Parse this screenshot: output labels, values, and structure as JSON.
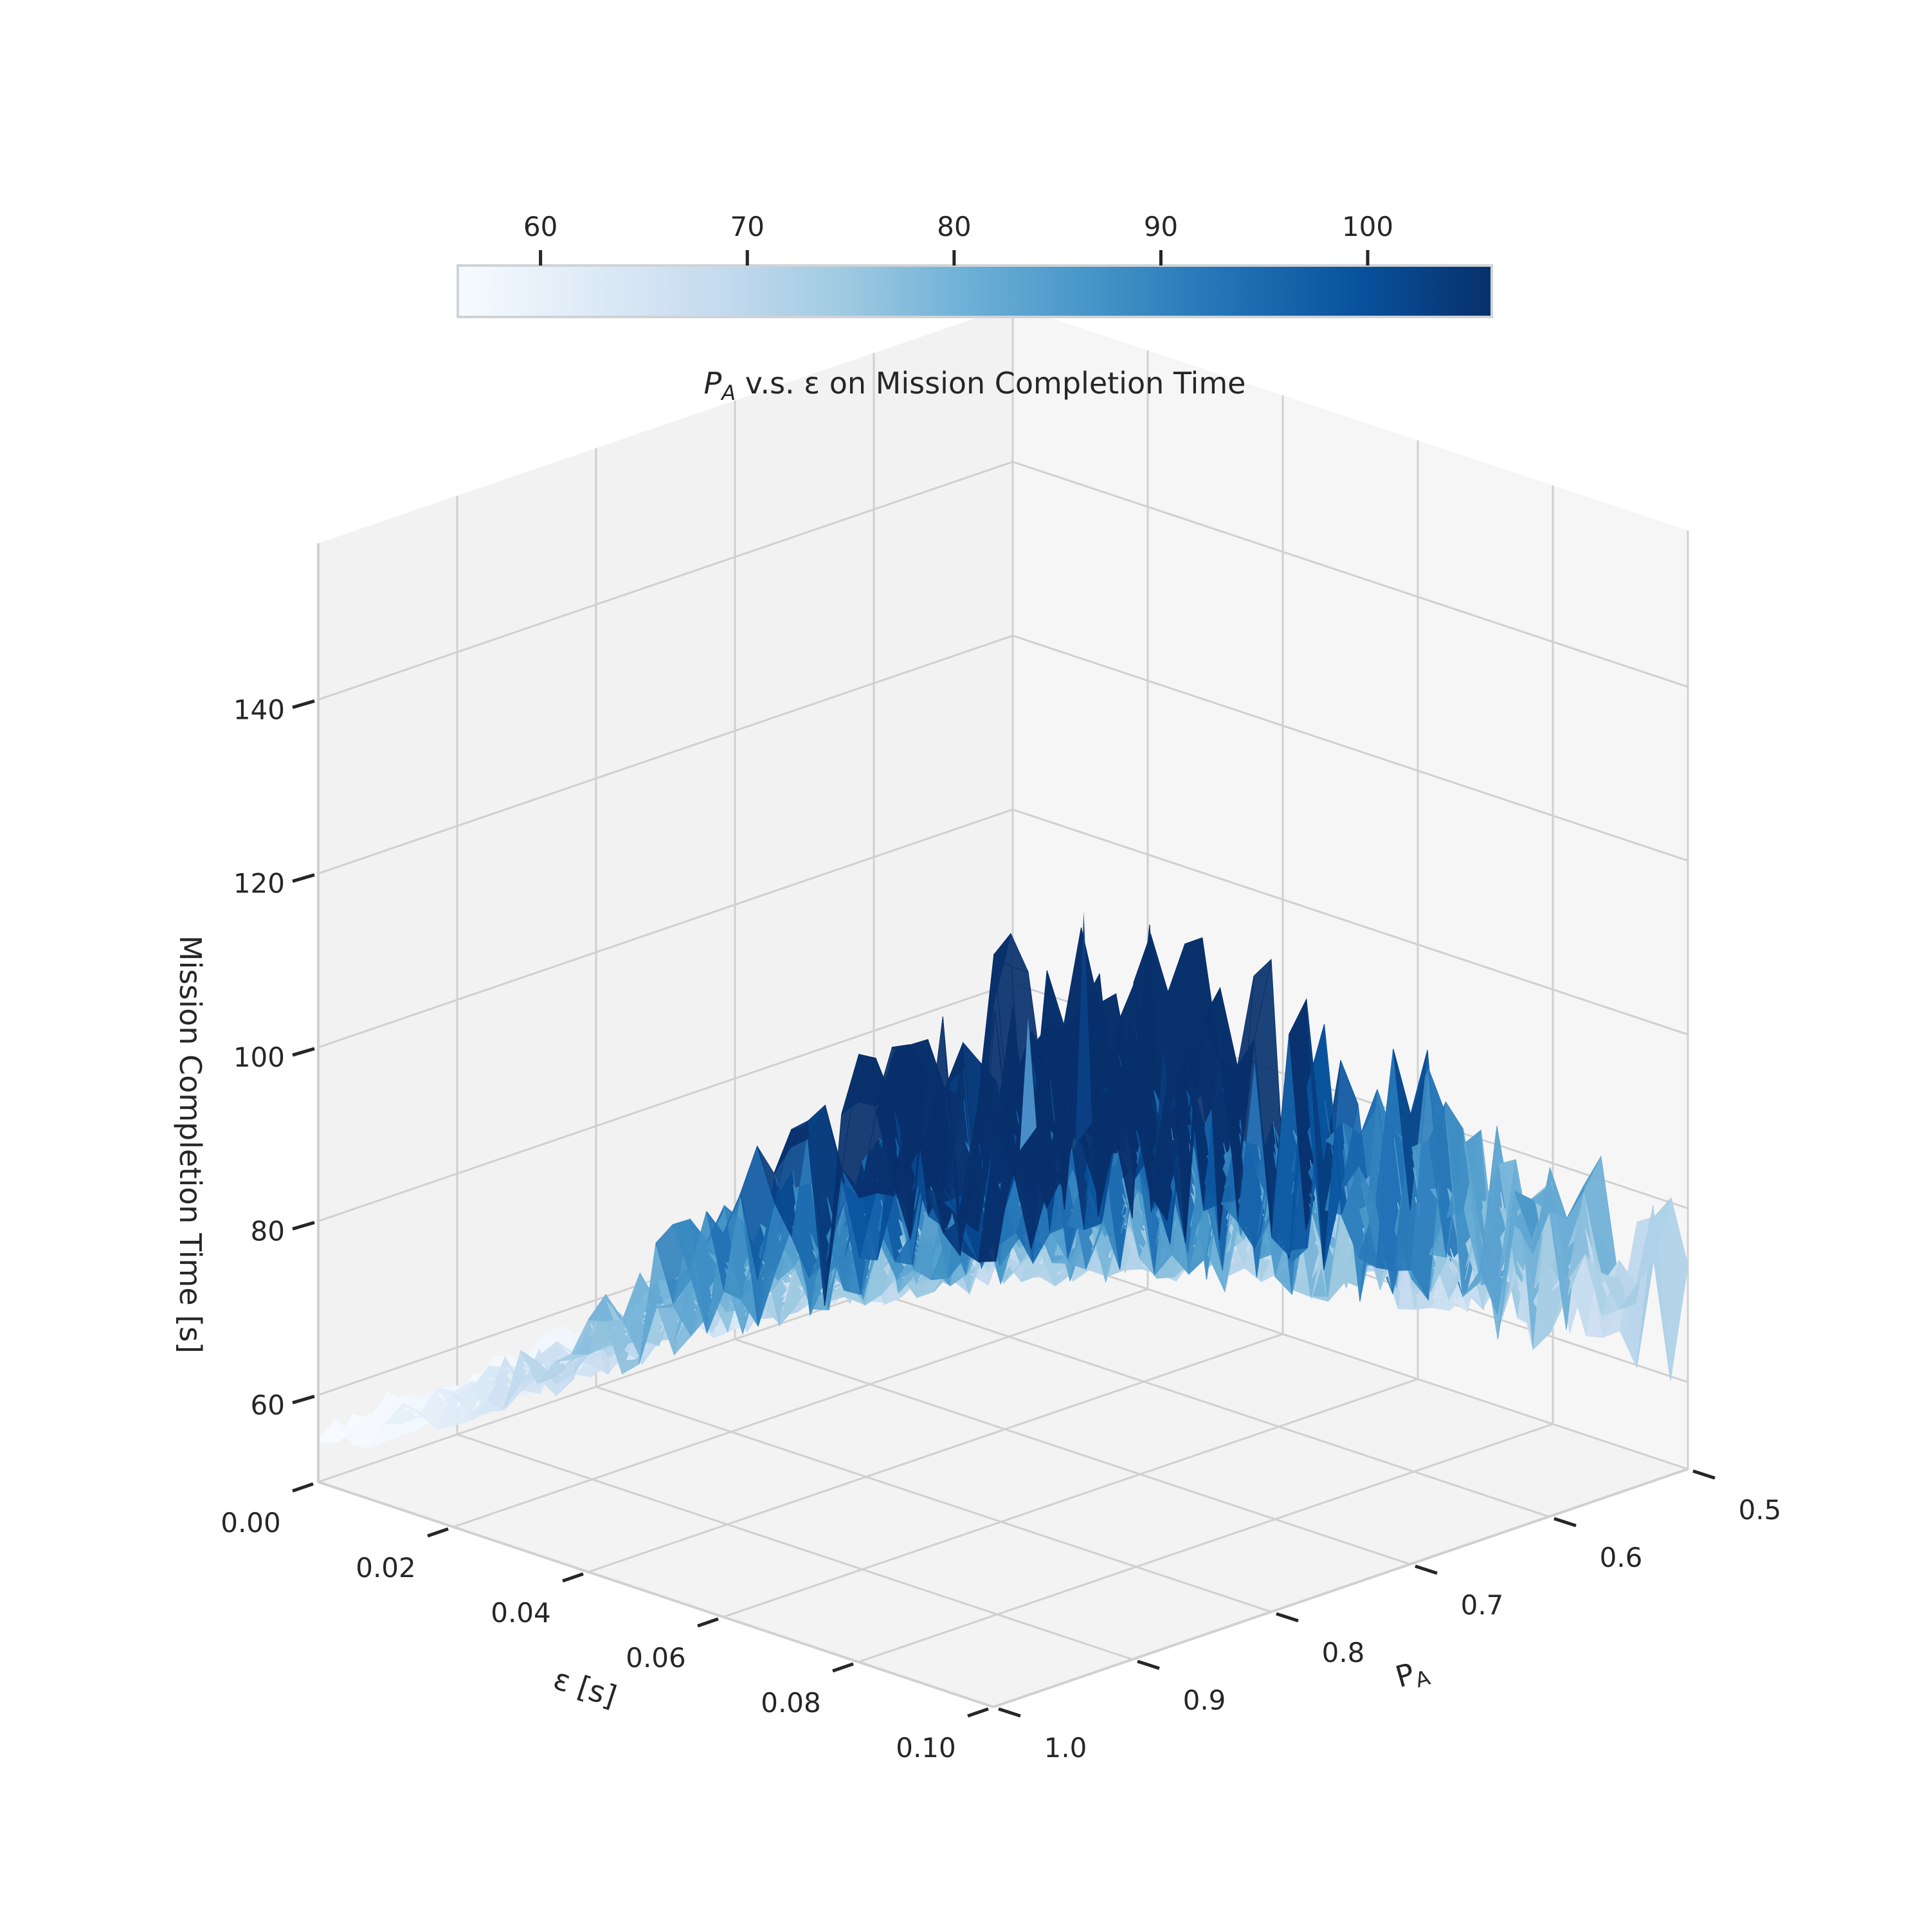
{
  "colors": {
    "background": "#ffffff",
    "pane_left": "#f2f2f2",
    "pane_right": "#f6f6f6",
    "pane_floor": "#f3f3f3",
    "grid": "#d0d0d0",
    "tick_mark": "#262626",
    "text": "#262626",
    "colorbar_border": "#cfd3d8",
    "spike_dark": "#0b3f84",
    "spike_mid": "#4a8ec8",
    "colormap": "Blues",
    "colormap_stops": [
      "#f7fbff",
      "#deebf7",
      "#c6dbef",
      "#9ecae1",
      "#6baed6",
      "#4292c6",
      "#2171b5",
      "#08519c",
      "#08306b"
    ]
  },
  "colorbar": {
    "ticks": [
      "60",
      "70",
      "80",
      "90",
      "100"
    ],
    "range": [
      56,
      106
    ],
    "title_main": "P",
    "title_sub": "A",
    "title_rest": " v.s. ε on Mission Completion Time"
  },
  "chart_data": {
    "type": "surface3d",
    "title": "P_A v.s. ε on Mission Completion Time",
    "x_axis": {
      "label": "ε [s]",
      "range": [
        0.0,
        0.1
      ],
      "ticks": [
        "0.00",
        "0.02",
        "0.04",
        "0.06",
        "0.08",
        "0.10"
      ]
    },
    "y_axis": {
      "label_main": "P",
      "label_sub": "A",
      "range": [
        0.5,
        1.0
      ],
      "ticks": [
        "0.5",
        "0.6",
        "0.7",
        "0.8",
        "0.9",
        "1.0"
      ]
    },
    "z_axis": {
      "label": "Mission Completion Time [s]",
      "range": [
        50,
        158
      ],
      "ticks": [
        "60",
        "80",
        "100",
        "120",
        "140"
      ]
    },
    "grid": true,
    "colorbar_location": "top",
    "surface_trend": {
      "description_values": "approximate mean height by P_A; noise increases with ε",
      "P_A": [
        0.5,
        0.6,
        0.7,
        0.8,
        0.9,
        1.0
      ],
      "z_at_eps_0": [
        62,
        60,
        58,
        57,
        56,
        55
      ],
      "z_at_eps_0_1": [
        70,
        82,
        96,
        110,
        120,
        124
      ]
    },
    "spikes": [
      {
        "eps": 0.1,
        "P_A": 0.935,
        "z": 138
      },
      {
        "eps": 0.1,
        "P_A": 0.975,
        "z": 128
      }
    ]
  }
}
